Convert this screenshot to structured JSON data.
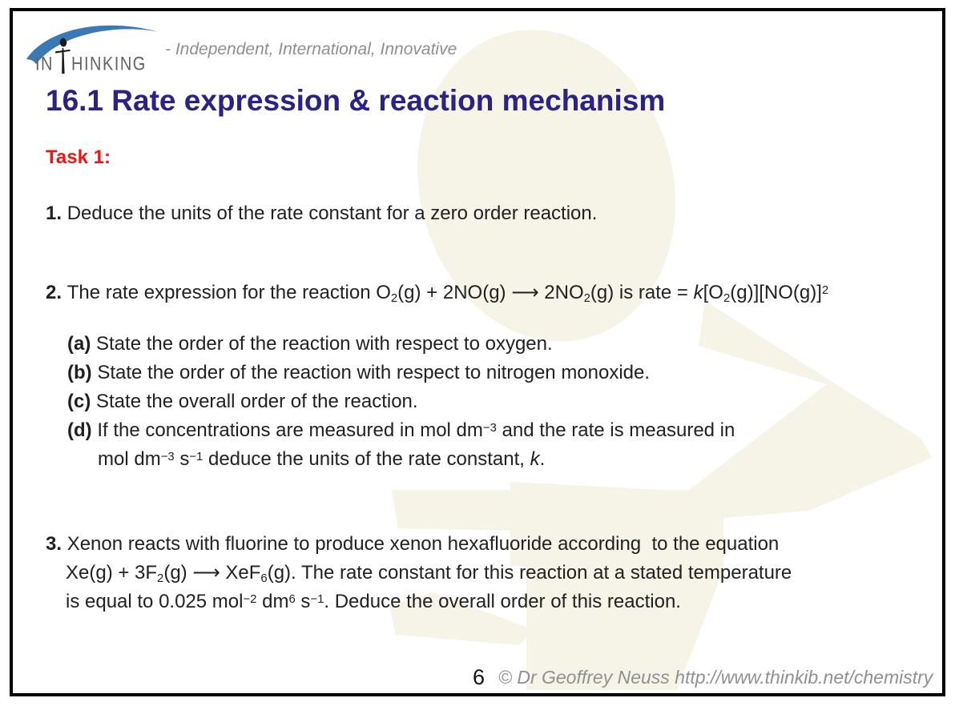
{
  "logo": {
    "brand_prefix": "IN",
    "brand_suffix": "HINKING",
    "tagline": "- Independent, International, Innovative",
    "icons": [
      "swoosh-arc",
      "thinking-person-icon"
    ]
  },
  "colors": {
    "title": "#2b2383",
    "task_label": "#ec1414",
    "body_text": "#212121",
    "muted_gray": "#8f8f8f",
    "swoosh_blue": "#3a79b4",
    "watermark_cream": "#f6f3e7",
    "border": "#000000"
  },
  "title": "16.1 Rate expression & reaction mechanism",
  "task_label": "Task 1:",
  "questions": {
    "q1": [
      {
        "f": "b",
        "s": "1. "
      },
      {
        "s": "Deduce the units of the rate constant for a zero order reaction."
      }
    ],
    "q2_intro": [
      {
        "f": "b",
        "s": "2. "
      },
      {
        "s": "The rate expression for the reaction O"
      },
      {
        "f": "sub",
        "s": "2"
      },
      {
        "s": "(g) + 2NO(g) ⟶ 2NO"
      },
      {
        "f": "sub",
        "s": "2"
      },
      {
        "s": "(g) is rate = "
      },
      {
        "f": "i",
        "s": "k"
      },
      {
        "s": "[O"
      },
      {
        "f": "sub",
        "s": "2"
      },
      {
        "s": "(g)][NO(g)]"
      },
      {
        "f": "sup",
        "s": "2"
      }
    ],
    "q2_part_a": [
      {
        "f": "b",
        "s": "(a) "
      },
      {
        "s": "State the order of the reaction with respect to oxygen."
      }
    ],
    "q2_part_b": [
      {
        "f": "b",
        "s": "(b) "
      },
      {
        "s": "State the order of the reaction with respect to nitrogen monoxide."
      }
    ],
    "q2_part_c": [
      {
        "f": "b",
        "s": "(c) "
      },
      {
        "s": "State the overall order of the reaction."
      }
    ],
    "q2_part_d_line1": [
      {
        "f": "b",
        "s": "(d) "
      },
      {
        "s": "If the concentrations are measured in mol dm"
      },
      {
        "f": "sup",
        "s": "−3"
      },
      {
        "s": " and the rate is measured in"
      }
    ],
    "q2_part_d_line2": [
      {
        "s": "mol dm"
      },
      {
        "f": "sup",
        "s": "−3"
      },
      {
        "s": " s"
      },
      {
        "f": "sup",
        "s": "−1"
      },
      {
        "s": " deduce the units of the rate constant, "
      },
      {
        "f": "i",
        "s": "k"
      },
      {
        "s": "."
      }
    ],
    "q3_line1": [
      {
        "f": "b",
        "s": "3. "
      },
      {
        "s": "Xenon reacts with fluorine to produce xenon hexafluoride according  to the equation"
      }
    ],
    "q3_line2": [
      {
        "s": "Xe(g) + 3F"
      },
      {
        "f": "sub",
        "s": "2"
      },
      {
        "s": "(g) ⟶ XeF"
      },
      {
        "f": "sub",
        "s": "6"
      },
      {
        "s": "(g). The rate constant for this reaction at a stated temperature"
      }
    ],
    "q3_line3": [
      {
        "s": "is equal to 0.025 mol"
      },
      {
        "f": "sup",
        "s": "−2"
      },
      {
        "s": " dm"
      },
      {
        "f": "sup",
        "s": "6"
      },
      {
        "s": " s"
      },
      {
        "f": "sup",
        "s": "−1"
      },
      {
        "s": ". Deduce the overall order of this reaction."
      }
    ]
  },
  "footer": {
    "page_number": "6",
    "copyright": "© Dr Geoffrey Neuss http://www.thinkib.net/chemistry"
  }
}
